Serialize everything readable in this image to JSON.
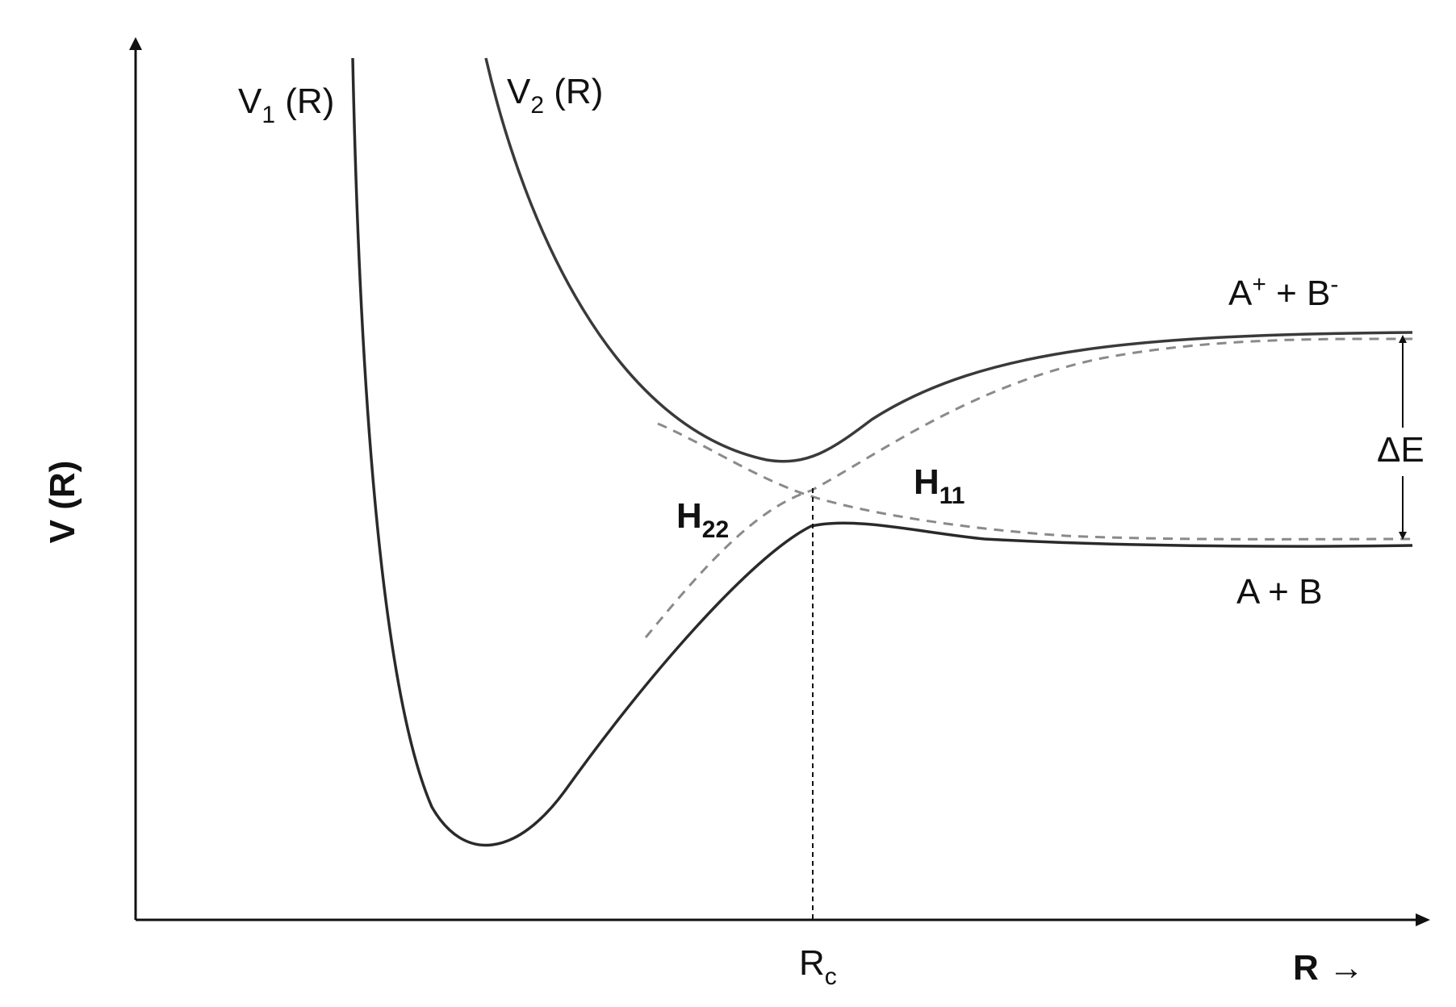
{
  "diagram": {
    "y_axis_label": "V (R)",
    "x_axis_label": "R →",
    "crossing_label_main": "R",
    "crossing_label_sub": "c",
    "curve_v1_main": "V",
    "curve_v1_sub": "1",
    "curve_v1_suffix": " (R)",
    "curve_v2_main": "V",
    "curve_v2_sub": "2",
    "curve_v2_suffix": " (R)",
    "h22_main": "H",
    "h22_sub": "22",
    "h11_main": "H",
    "h11_sub": "11",
    "ionic_label_a": "A",
    "ionic_label_a_sup": "+",
    "ionic_label_mid": " + B",
    "ionic_label_b_sup": "-",
    "covalent_label": "A + B",
    "delta_e_label": "ΔE",
    "colors": {
      "adiabatic_curve": "#2a2a2a",
      "diabatic_curve": "#8a8a8a",
      "axis": "#111111"
    }
  }
}
